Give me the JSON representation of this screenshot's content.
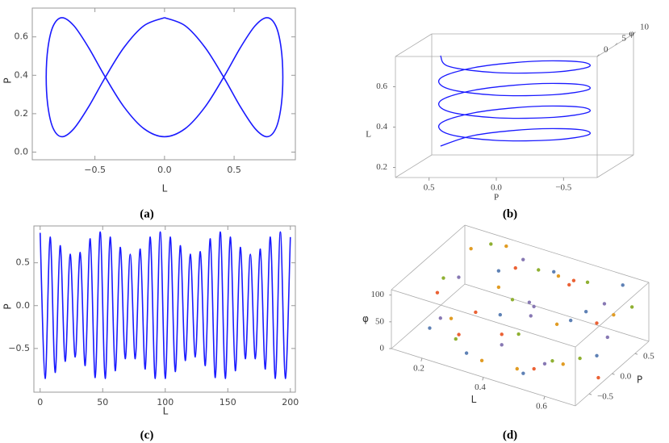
{
  "chart_data": [
    {
      "type": "line",
      "caption": "(a)",
      "xlabel": "L",
      "ylabel": "P",
      "x": [
        0,
        0.148,
        0.291,
        0.425,
        0.546,
        0.651,
        0.736,
        0.799,
        0.837,
        0.85,
        0.837,
        0.799,
        0.736,
        0.651,
        0.546,
        0.425,
        0.291,
        0.148,
        0,
        -0.148,
        -0.291,
        -0.425,
        -0.546,
        -0.651,
        -0.736,
        -0.799,
        -0.837,
        -0.85,
        -0.837,
        -0.799,
        -0.736,
        -0.651,
        -0.546,
        -0.425,
        -0.291,
        -0.148,
        0
      ],
      "series": [
        {
          "color": "#1a1aff",
          "values": [
            0.7,
            0.658,
            0.545,
            0.39,
            0.235,
            0.122,
            0.08,
            0.122,
            0.235,
            0.39,
            0.545,
            0.658,
            0.7,
            0.658,
            0.545,
            0.39,
            0.235,
            0.122,
            0.08,
            0.122,
            0.235,
            0.39,
            0.545,
            0.658,
            0.7,
            0.658,
            0.545,
            0.39,
            0.235,
            0.122,
            0.08,
            0.122,
            0.235,
            0.39,
            0.545,
            0.658,
            0.7
          ]
        }
      ],
      "xlim": [
        -0.95,
        0.94
      ],
      "xticks": [
        {
          "value": -0.5,
          "label": "−0.5"
        },
        {
          "value": 0,
          "label": "0.0"
        },
        0.5
      ],
      "ylim": [
        -0.04,
        0.75
      ],
      "yticks": [
        {
          "value": 0,
          "label": "0.0"
        },
        0.2,
        0.4,
        0.6
      ]
    },
    {
      "type": "line3d",
      "caption": "(b)",
      "xlabel": "P",
      "ylabel": "φ",
      "zlabel": "L",
      "x": [
        0.55,
        0.39,
        0,
        -0.39,
        -0.55,
        -0.39,
        0,
        0.39,
        0.55,
        0.39,
        0,
        -0.39,
        -0.55,
        -0.39,
        0,
        0.39,
        0.55,
        0.39,
        0,
        -0.39,
        -0.55,
        -0.39,
        0,
        0.39,
        0.55,
        0.39,
        0,
        -0.39,
        -0.55,
        -0.39,
        0,
        0.39,
        0.55
      ],
      "y": [
        5,
        8.54,
        10,
        8.54,
        5,
        1.46,
        0,
        1.46,
        5,
        8.54,
        10,
        8.54,
        5,
        1.46,
        0,
        1.46,
        5,
        8.54,
        10,
        8.54,
        5,
        1.46,
        0,
        1.46,
        5,
        8.54,
        10,
        8.54,
        5,
        1.46,
        0,
        1.46,
        5
      ],
      "z": [
        0.25,
        0.264,
        0.278,
        0.292,
        0.306,
        0.32,
        0.334,
        0.348,
        0.362,
        0.376,
        0.39,
        0.404,
        0.418,
        0.432,
        0.446,
        0.46,
        0.474,
        0.488,
        0.502,
        0.516,
        0.53,
        0.544,
        0.558,
        0.572,
        0.586,
        0.6,
        0.614,
        0.628,
        0.642,
        0.656,
        0.67,
        0.684,
        0.698
      ],
      "color": "#1a1aff",
      "xlim": [
        -0.75,
        0.75
      ],
      "xticks": [
        0.5,
        {
          "value": 0,
          "label": "0.0"
        },
        {
          "value": -0.5,
          "label": "−0.5"
        }
      ],
      "ylim": [
        0,
        10
      ],
      "yticks": [
        0,
        5,
        10
      ],
      "zlim": [
        0.15,
        0.75
      ],
      "zticks": [
        0.2,
        0.4,
        0.6
      ]
    },
    {
      "type": "line",
      "caption": "(c)",
      "xlabel": "L",
      "ylabel": "P",
      "x": [
        0,
        4,
        8,
        12,
        16,
        20,
        24,
        28,
        32,
        36,
        40,
        44,
        48,
        52,
        56,
        60,
        64,
        68,
        72,
        76,
        80,
        84,
        88,
        92,
        96,
        100,
        104,
        108,
        112,
        116,
        120,
        124,
        128,
        132,
        136,
        140,
        144,
        148,
        152,
        156,
        160,
        164,
        168,
        172,
        176,
        180,
        184,
        188,
        192,
        196,
        200
      ],
      "series": [
        {
          "color": "#1a1aff",
          "values": [
            0.85,
            -0.85,
            0.8,
            -0.78,
            0.7,
            -0.65,
            0.6,
            -0.6,
            0.62,
            -0.7,
            0.78,
            -0.84,
            0.86,
            -0.85,
            0.8,
            -0.76,
            0.68,
            -0.62,
            0.6,
            -0.62,
            0.66,
            -0.74,
            0.8,
            -0.85,
            0.86,
            -0.85,
            0.8,
            -0.77,
            0.7,
            -0.64,
            0.6,
            -0.6,
            0.63,
            -0.7,
            0.78,
            -0.84,
            0.86,
            -0.85,
            0.8,
            -0.76,
            0.68,
            -0.62,
            0.6,
            -0.62,
            0.66,
            -0.74,
            0.8,
            -0.85,
            0.86,
            -0.85,
            0.8
          ]
        }
      ],
      "xlim": [
        -5,
        204
      ],
      "xticks": [
        0,
        50,
        100,
        150,
        200
      ],
      "ylim": [
        -1.01,
        0.93
      ],
      "yticks": [
        {
          "value": -0.5,
          "label": "−0.5"
        },
        {
          "value": 0,
          "label": "0.0"
        },
        0.5
      ]
    },
    {
      "type": "scatter3d",
      "caption": "(d)",
      "xlabel": "L",
      "ylabel": "P",
      "zlabel": "φ",
      "series": [
        {
          "color": "#E19C24",
          "x": [
            0.15,
            0.22,
            0.3,
            0.38,
            0.45,
            0.52,
            0.6,
            0.66,
            0.25,
            0.48
          ],
          "y": [
            0.6,
            -0.3,
            0.2,
            -0.7,
            0.5,
            0,
            -0.4,
            0.3,
            0.7,
            -0.6
          ],
          "z": [
            90,
            40,
            75,
            20,
            100,
            60,
            30,
            80,
            105,
            15
          ]
        },
        {
          "color": "#5E81B5",
          "x": [
            0.18,
            0.27,
            0.35,
            0.42,
            0.5,
            0.57,
            0.63,
            0.68,
            0.33,
            0.55
          ],
          "y": [
            -0.5,
            0.4,
            -0.1,
            0.6,
            -0.6,
            0.3,
            0.7,
            -0.2,
            -0.7,
            0.1
          ],
          "z": [
            30,
            85,
            55,
            95,
            10,
            70,
            100,
            45,
            25,
            65
          ]
        },
        {
          "color": "#8FB032",
          "x": [
            0.12,
            0.2,
            0.28,
            0.36,
            0.44,
            0.53,
            0.61,
            0.69,
            0.4,
            0.58
          ],
          "y": [
            0.2,
            0.7,
            -0.6,
            0.1,
            -0.3,
            0.6,
            -0.1,
            0.5,
            0.4,
            -0.5
          ],
          "z": [
            60,
            100,
            35,
            70,
            50,
            95,
            20,
            85,
            110,
            40
          ]
        },
        {
          "color": "#EB6235",
          "x": [
            0.16,
            0.24,
            0.31,
            0.4,
            0.47,
            0.55,
            0.62,
            0.7,
            0.29,
            0.5
          ],
          "y": [
            -0.2,
            0.1,
            0.5,
            -0.4,
            0.7,
            -0.7,
            0.2,
            -0.3,
            -0.6,
            0.4
          ],
          "z": [
            70,
            25,
            90,
            50,
            80,
            35,
            65,
            15,
            45,
            100
          ]
        },
        {
          "color": "#8778B3",
          "x": [
            0.14,
            0.23,
            0.32,
            0.39,
            0.46,
            0.54,
            0.6,
            0.67,
            0.37,
            0.43
          ],
          "y": [
            0.4,
            -0.6,
            0.6,
            0.3,
            -0.1,
            -0.4,
            0.5,
            0.1,
            -0.2,
            0
          ],
          "z": [
            50,
            65,
            100,
            30,
            90,
            20,
            75,
            55,
            10,
            85
          ]
        }
      ],
      "xlim": [
        0.1,
        0.7
      ],
      "xticks": [
        0.2,
        0.4,
        0.6
      ],
      "ylim": [
        -0.8,
        0.8
      ],
      "yticks": [
        {
          "value": -0.5,
          "label": "−0.5"
        },
        {
          "value": 0,
          "label": "0.0"
        },
        0.5
      ],
      "zlim": [
        0,
        110
      ],
      "zticks": [
        0,
        50,
        100
      ]
    }
  ]
}
